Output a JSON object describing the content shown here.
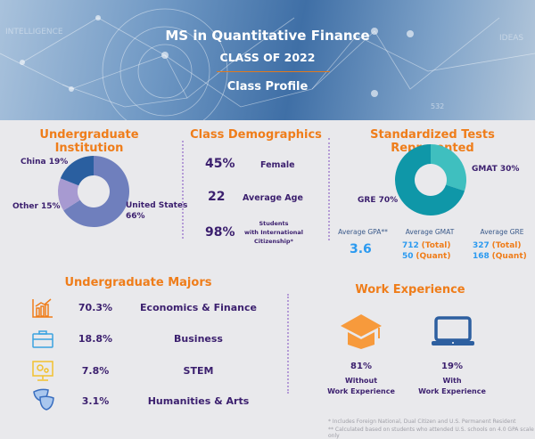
{
  "header": {
    "title": "MS in Quantitative Finance",
    "subtitle": "CLASS OF 2022",
    "section": "Class Profile",
    "bg_words": [
      "INTELLIGENCE",
      "IDEAS",
      "532"
    ]
  },
  "institution": {
    "title": "Undergraduate Institution",
    "chart_data": {
      "type": "pie",
      "slices": [
        {
          "label": "United States",
          "value": 66,
          "color": "#6f7fbd"
        },
        {
          "label": "Other",
          "value": 15,
          "color": "#a79ad1"
        },
        {
          "label": "China",
          "value": 19,
          "color": "#2a5fa0"
        }
      ]
    },
    "labels": {
      "china": "China 19%",
      "other": "Other 15%",
      "us1": "United States",
      "us2": "66%"
    }
  },
  "demographics": {
    "title": "Class Demographics",
    "items": [
      {
        "value": "45%",
        "label": "Female"
      },
      {
        "value": "22",
        "label": "Average Age"
      },
      {
        "value": "98%",
        "label1": "Students",
        "label2": "with International",
        "label3": "Citizenship*"
      }
    ]
  },
  "tests": {
    "title": "Standardized Tests Represented",
    "chart_data": {
      "type": "pie",
      "slices": [
        {
          "label": "GMAT",
          "value": 30,
          "color": "#3fbfbf"
        },
        {
          "label": "GRE",
          "value": 70,
          "color": "#0f97a8"
        }
      ]
    },
    "labels": {
      "gmat": "GMAT 30%",
      "gre": "GRE 70%"
    },
    "gpa": {
      "label": "Average GPA**",
      "value": "3.6"
    },
    "gmat_avg": {
      "label": "Average GMAT",
      "total": "712",
      "total_lbl": "(Total)",
      "quant": "50",
      "quant_lbl": "(Quant)"
    },
    "gre_avg": {
      "label": "Average GRE",
      "total": "327",
      "total_lbl": "(Total)",
      "quant": "168",
      "quant_lbl": "(Quant)"
    }
  },
  "majors": {
    "title": "Undergraduate Majors",
    "items": [
      {
        "pct": "70.3%",
        "name": "Economics & Finance",
        "icon": "chart-growth-icon"
      },
      {
        "pct": "18.8%",
        "name": "Business",
        "icon": "briefcase-icon"
      },
      {
        "pct": "7.8%",
        "name": "STEM",
        "icon": "computer-gears-icon"
      },
      {
        "pct": "3.1%",
        "name": "Humanities & Arts",
        "icon": "theater-masks-icon"
      }
    ]
  },
  "work": {
    "title": "Work Experience",
    "without": {
      "pct": "81%",
      "l1": "Without",
      "l2": "Work Experience"
    },
    "with": {
      "pct": "19%",
      "l1": "With",
      "l2": "Work Experience"
    }
  },
  "footnotes": [
    "* Includes Foreign National, Dual Citizen and U.S. Permanent Resident",
    "** Calculated based on students who attended U.S. schools on 4.0 GPA scale only"
  ]
}
